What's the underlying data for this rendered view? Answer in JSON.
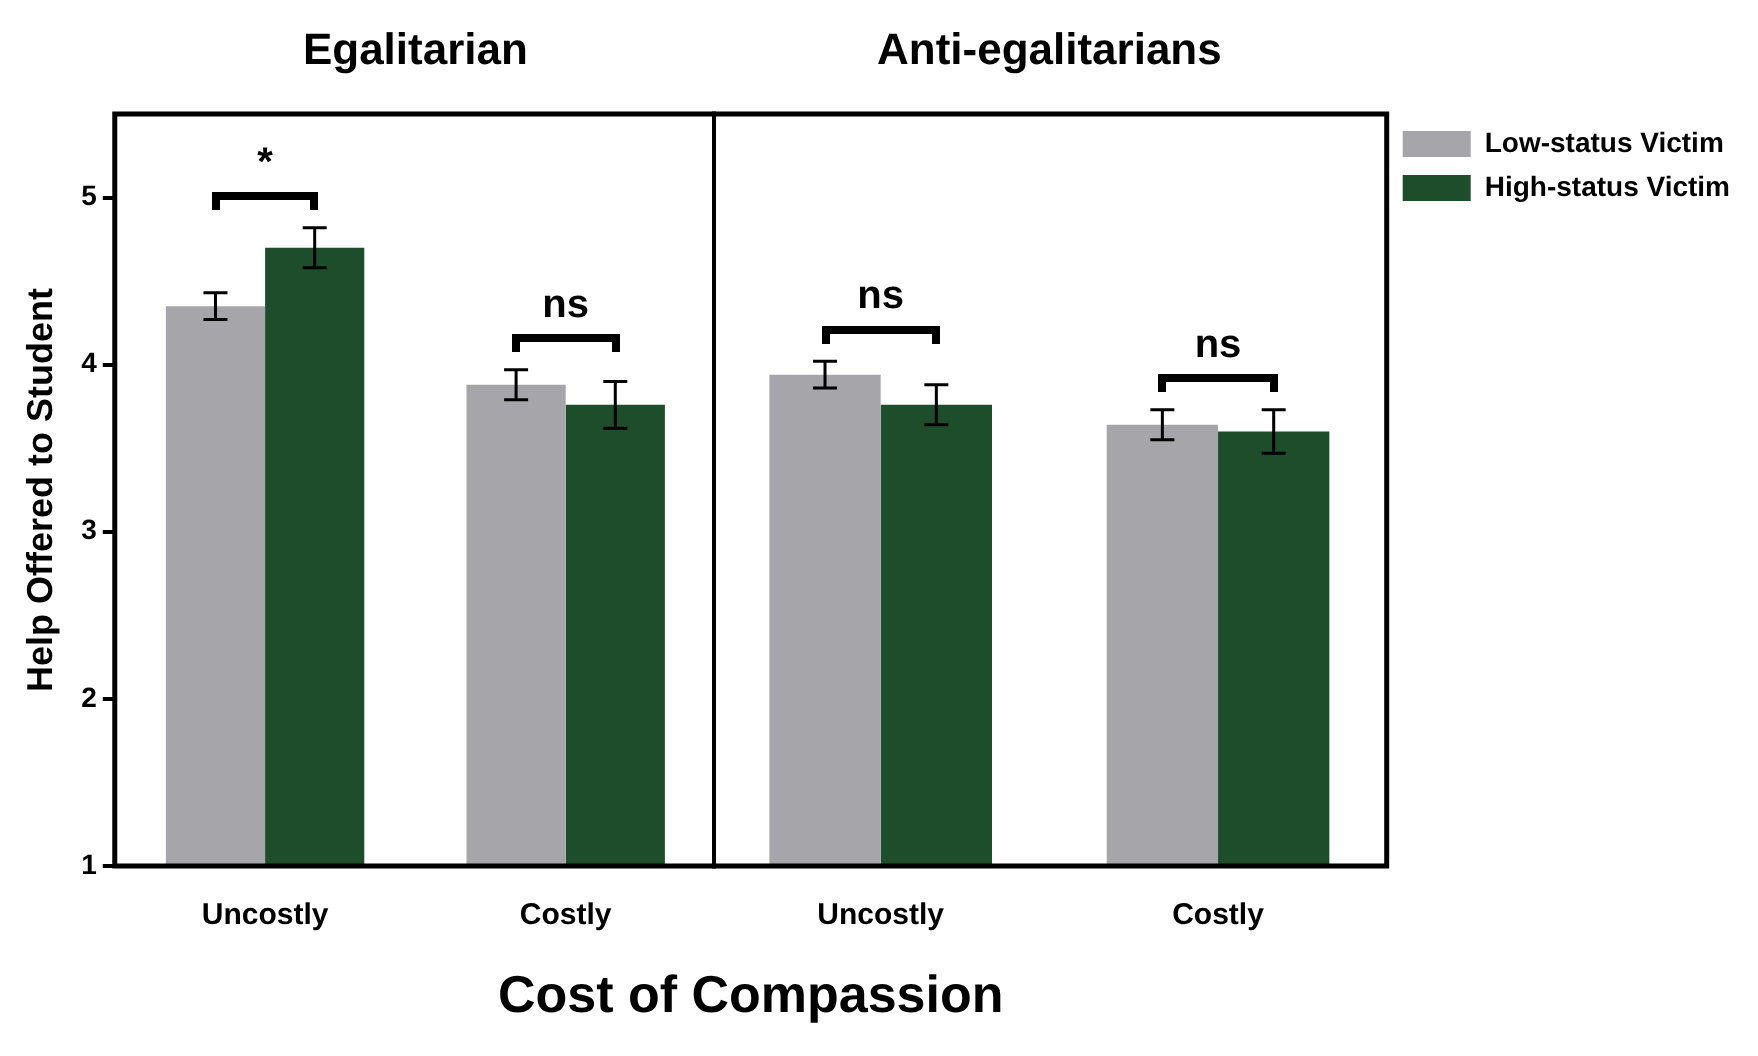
{
  "chart_data": [
    {
      "type": "bar",
      "title": "Egalitarian",
      "xlabel": "Cost of Compassion",
      "ylabel": "Help Offered to Student",
      "categories": [
        "Uncostly",
        "Costly"
      ],
      "series": [
        {
          "color": "#a6a6aa",
          "values": [
            4.35,
            3.88
          ],
          "errors": [
            0.08,
            0.09
          ]
        },
        {
          "color": "#1e4d2b",
          "values": [
            4.7,
            3.76
          ],
          "errors": [
            0.12,
            0.14
          ]
        }
      ],
      "ylim": [
        1,
        5.5
      ],
      "yticks": [
        1,
        2,
        3,
        4,
        5
      ],
      "grid": false,
      "legend": false,
      "annotations": [
        "*",
        "ns"
      ]
    },
    {
      "type": "bar",
      "title": "Anti-egalitarians",
      "categories": [
        "Uncostly",
        "Costly"
      ],
      "series": [
        {
          "name": "Low-status Victim",
          "color": "#a6a6aa",
          "values": [
            3.94,
            3.64
          ],
          "errors": [
            0.08,
            0.09
          ]
        },
        {
          "name": "High-status Victim",
          "color": "#1e4d2b",
          "values": [
            3.76,
            3.6
          ],
          "errors": [
            0.12,
            0.13
          ]
        }
      ],
      "ylim": [
        1,
        5.5
      ],
      "yticks": [
        1,
        2,
        3,
        4,
        5
      ],
      "tick_labels": "x",
      "grid": false,
      "legend": "right",
      "annotations": [
        "ns",
        "ns"
      ]
    }
  ]
}
